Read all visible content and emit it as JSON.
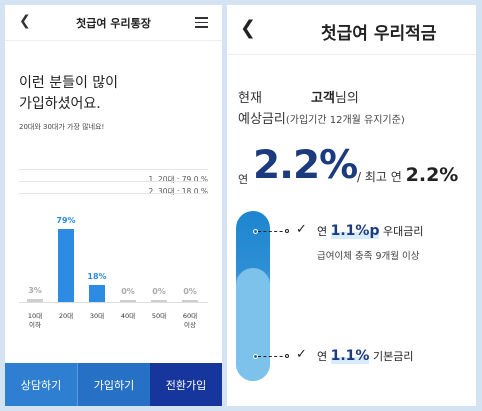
{
  "left": {
    "title": "첫급여 우리통장",
    "headline_line1": "이런 분들이 많이",
    "headline_line2": "가입하셨어요.",
    "subtext": "20대와 30대가 가장 많네요!",
    "legend": [
      "1. 20대 : 79.0 %",
      "2. 30대 : 18.0 %"
    ],
    "chart_data": {
      "type": "bar",
      "categories": [
        "10대 이하",
        "20대",
        "30대",
        "40대",
        "50대",
        "60대 이상"
      ],
      "values": [
        3,
        79,
        18,
        0,
        0,
        0
      ],
      "value_labels": [
        "3%",
        "79%",
        "18%",
        "0%",
        "0%",
        "0%"
      ],
      "x_tick_labels": [
        [
          "10대",
          "이하"
        ],
        [
          "20대"
        ],
        [
          "30대"
        ],
        [
          "40대"
        ],
        [
          "50대"
        ],
        [
          "60대",
          "이상"
        ]
      ],
      "highlight_color": "#2e8be3",
      "muted_color": "#cfcfcf"
    },
    "footer_buttons": [
      "상담하기",
      "가입하기",
      "전환가입"
    ]
  },
  "right": {
    "title": "첫급여 우리적금",
    "current_label": "현재",
    "customer_name": "고객",
    "customer_suffix": "님의",
    "expected_rate_label": "예상금리",
    "expected_rate_note": "(가입기간 12개월 유지기준)",
    "yeon": "연",
    "rate": "2.2%",
    "max_label": "/ 최고 연",
    "max_rate": "2.2%",
    "prime_prefix": "연",
    "prime_value": "1.1%p",
    "prime_label": "우대금리",
    "prime_condition": "급여이체 충족 9개월 이상",
    "basic_prefix": "연",
    "basic_value": "1.1%",
    "basic_label": "기본금리"
  },
  "colors": {
    "accent": "#1c3a7e",
    "bar": "#2e8be3",
    "footer_dark": "#16369e"
  },
  "icons": {
    "back": "chevron-left-icon",
    "menu": "hamburger-icon",
    "check": "check-icon"
  }
}
